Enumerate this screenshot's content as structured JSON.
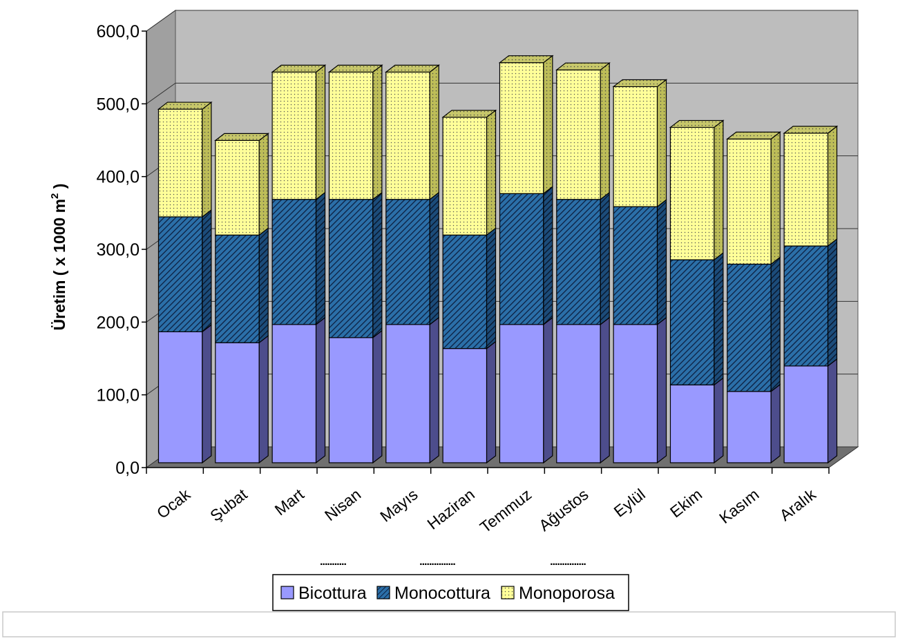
{
  "chart_data": {
    "type": "bar",
    "stacked": true,
    "three_d": true,
    "categories": [
      "Ocak",
      "Şubat",
      "Mart",
      "Nisan",
      "Mayıs",
      "Haziran",
      "Temmuz",
      "Ağustos",
      "Eylül",
      "Ekim",
      "Kasım",
      "Aralık"
    ],
    "series": [
      {
        "name": "Bicottura",
        "values": [
          180,
          165,
          190,
          172,
          190,
          157,
          190,
          190,
          190,
          107,
          98,
          133
        ],
        "color": "#9999ff",
        "pattern": "solid"
      },
      {
        "name": "Monocottura",
        "values": [
          158,
          148,
          172,
          190,
          172,
          156,
          180,
          172,
          162,
          172,
          175,
          165
        ],
        "color": "#2b6fa8",
        "pattern": "diagonal-hatch"
      },
      {
        "name": "Monoporosa",
        "values": [
          148,
          130,
          175,
          175,
          175,
          162,
          180,
          178,
          165,
          182,
          172,
          155
        ],
        "color": "#ffff99",
        "pattern": "dotted"
      }
    ],
    "ylabel_main": "Üretim ( x 1000 m",
    "ylabel_sup": "2",
    "ylabel_end": " )",
    "ylim": [
      0,
      600
    ],
    "yticks": [
      "0,0",
      "100,0",
      "200,0",
      "300,0",
      "400,0",
      "500,0",
      "600,0"
    ],
    "grid": true,
    "legend_position": "bottom",
    "dotted_marks": [
      "...........",
      "...............",
      "..............."
    ]
  }
}
